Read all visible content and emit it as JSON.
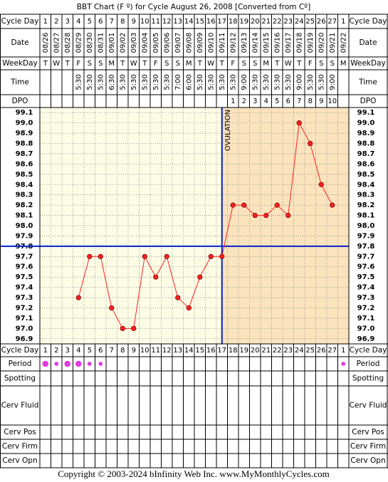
{
  "title": "BBT Chart (F º) for Cycle August 26, 2008  [Converted from Cº]",
  "labels": {
    "cycle_day": "Cycle Day",
    "date": "Date",
    "weekday": "WeekDay",
    "time": "Time",
    "dpo": "DPO",
    "period": "Period",
    "spotting": "Spotting",
    "cerv_fluid": "Cerv Fluid",
    "cerv_pos": "Cerv Pos",
    "cerv_firm": "Cerv Firm",
    "cerv_opn": "Cerv Opn"
  },
  "dates": [
    "08/26",
    "08/27",
    "08/28",
    "08/29",
    "08/30",
    "08/31",
    "09/01",
    "09/02",
    "09/03",
    "09/04",
    "09/05",
    "09/06",
    "09/07",
    "09/08",
    "09/09",
    "09/10",
    "09/11",
    "09/12",
    "09/13",
    "09/14",
    "09/15",
    "09/16",
    "09/17",
    "09/18",
    "09/19",
    "09/20",
    "09/21",
    "09/22"
  ],
  "weekdays": [
    "T",
    "W",
    "T",
    "F",
    "S",
    "S",
    "M",
    "T",
    "W",
    "T",
    "F",
    "S",
    "S",
    "M",
    "T",
    "W",
    "T",
    "F",
    "S",
    "S",
    "M",
    "T",
    "W",
    "T",
    "F",
    "S",
    "S",
    "M"
  ],
  "times": [
    null,
    null,
    null,
    "5:30",
    "5:30",
    "5:30",
    "6:30",
    "5:30",
    "5:30",
    "5:30",
    "5:30",
    "5:30",
    "7:00",
    "6:00",
    "5:30",
    "5:30",
    "5:30",
    "5:30",
    "9:00",
    "5:30",
    "5:30",
    "5:30",
    "5:30",
    "9:00",
    "5:30",
    "5:30",
    "9:00",
    null
  ],
  "dpo": [
    null,
    null,
    null,
    null,
    null,
    null,
    null,
    null,
    null,
    null,
    null,
    null,
    null,
    null,
    null,
    null,
    null,
    1,
    2,
    3,
    4,
    5,
    6,
    7,
    8,
    9,
    10,
    null
  ],
  "period": [
    2,
    1,
    2,
    2,
    1,
    1,
    null,
    null,
    null,
    null,
    null,
    null,
    null,
    null,
    null,
    null,
    null,
    null,
    null,
    null,
    null,
    null,
    null,
    null,
    null,
    null,
    null,
    1
  ],
  "chart_data": {
    "type": "line",
    "categories": [
      1,
      2,
      3,
      4,
      5,
      6,
      7,
      8,
      9,
      10,
      11,
      12,
      13,
      14,
      15,
      16,
      17,
      18,
      19,
      20,
      21,
      22,
      23,
      24,
      25,
      26,
      27,
      1
    ],
    "values": [
      null,
      null,
      null,
      97.3,
      97.7,
      97.7,
      97.2,
      97.0,
      97.0,
      97.7,
      97.5,
      97.7,
      97.3,
      97.2,
      97.5,
      97.7,
      97.7,
      98.2,
      98.2,
      98.1,
      98.1,
      98.2,
      98.1,
      99.0,
      98.8,
      98.4,
      98.2,
      null
    ],
    "color": "#ff2020",
    "coverline": 97.8,
    "ovulation_day": 17,
    "ovulation_label": "OVULATION",
    "ylim": [
      96.85,
      99.15
    ],
    "yticks": [
      99.1,
      {
        "value": 99.0,
        "label": "99.0"
      },
      98.9,
      98.8,
      98.7,
      98.6,
      98.5,
      98.4,
      98.3,
      98.2,
      98.1,
      {
        "value": 98.0,
        "label": "98.0"
      },
      97.9,
      97.8,
      97.7,
      97.6,
      97.5,
      97.4,
      97.3,
      97.2,
      97.1,
      {
        "value": 97.0,
        "label": "97.0"
      },
      96.9
    ],
    "grid": true
  },
  "footer": "Copyright © 2003-2024 bInfinity Web Inc.     www.MyMonthlyCycles.com"
}
